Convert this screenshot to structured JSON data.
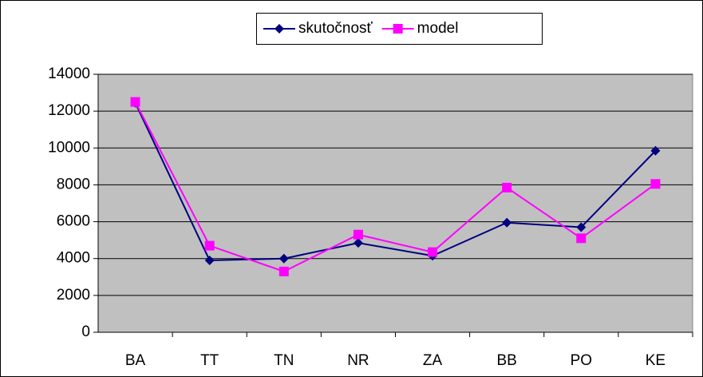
{
  "chart_data": {
    "type": "line",
    "categories": [
      "BA",
      "TT",
      "TN",
      "NR",
      "ZA",
      "BB",
      "PO",
      "KE"
    ],
    "series": [
      {
        "name": "skutočnosť",
        "color": "#000080",
        "marker": "diamond",
        "values": [
          12450,
          3900,
          4000,
          4850,
          4150,
          5950,
          5700,
          9850
        ]
      },
      {
        "name": "model",
        "color": "#ff00ff",
        "marker": "square",
        "values": [
          12500,
          4700,
          3300,
          5300,
          4350,
          7850,
          5100,
          8050
        ]
      }
    ],
    "ylim": [
      0,
      14000
    ],
    "yticks": [
      0,
      2000,
      4000,
      6000,
      8000,
      10000,
      12000,
      14000
    ],
    "grid": true,
    "legend": "top",
    "plot_background": "#c0c0c0"
  }
}
